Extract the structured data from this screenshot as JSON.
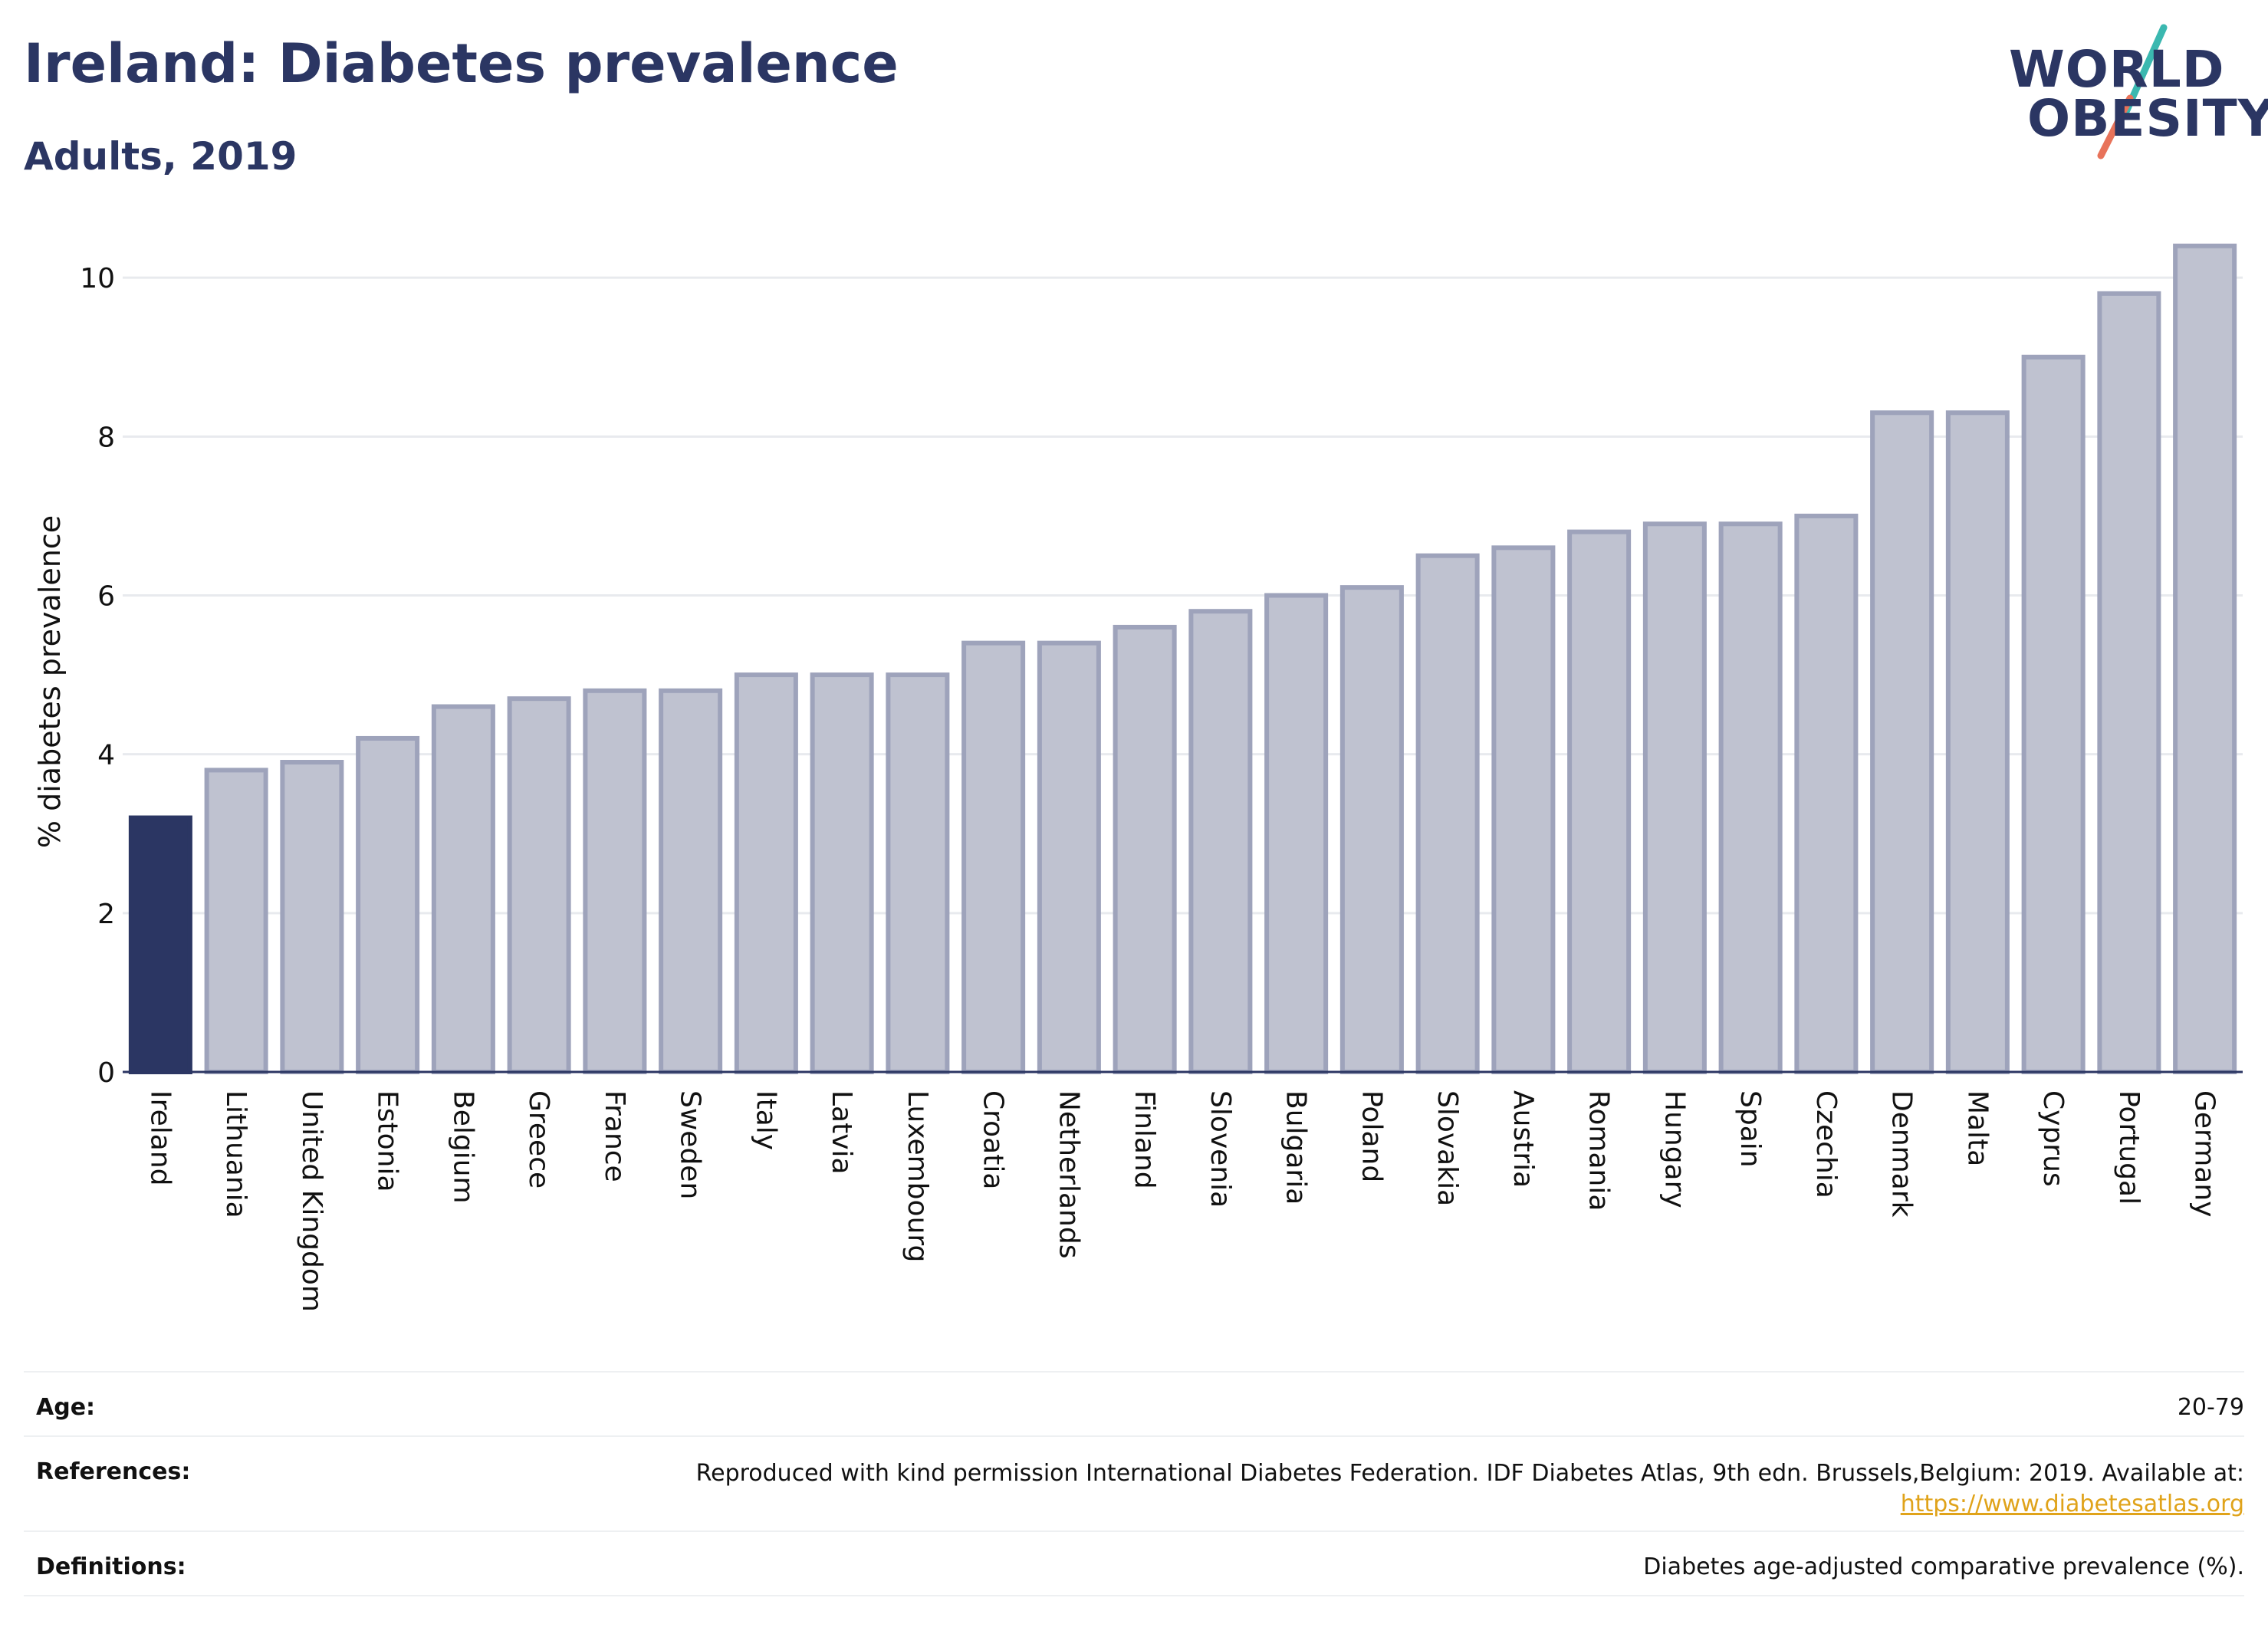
{
  "header": {
    "title": "Ireland: Diabetes prevalence",
    "subtitle": "Adults, 2019"
  },
  "logo": {
    "line1": "WORLD",
    "line2": "OBESITY",
    "accent_colors": [
      "#3bb8b0",
      "#e8735a"
    ]
  },
  "chart_data": {
    "type": "bar",
    "title": "",
    "xlabel": "",
    "ylabel": "% diabetes prevalence",
    "ylim": [
      0,
      10.6
    ],
    "yticks": [
      0,
      2,
      4,
      6,
      8,
      10
    ],
    "grid": true,
    "highlight": "Ireland",
    "highlight_color": "#2b3663",
    "bar_color": "#bfc2d0",
    "bar_border_color": "#9ea3bb",
    "categories": [
      "Ireland",
      "Lithuania",
      "United Kingdom",
      "Estonia",
      "Belgium",
      "Greece",
      "France",
      "Sweden",
      "Italy",
      "Latvia",
      "Luxembourg",
      "Croatia",
      "Netherlands",
      "Finland",
      "Slovenia",
      "Bulgaria",
      "Poland",
      "Slovakia",
      "Austria",
      "Romania",
      "Hungary",
      "Spain",
      "Czechia",
      "Denmark",
      "Malta",
      "Cyprus",
      "Portugal",
      "Germany"
    ],
    "values": [
      3.2,
      3.8,
      3.9,
      4.2,
      4.6,
      4.7,
      4.8,
      4.8,
      5.0,
      5.0,
      5.0,
      5.4,
      5.4,
      5.6,
      5.8,
      6.0,
      6.1,
      6.5,
      6.6,
      6.8,
      6.9,
      6.9,
      7.0,
      8.3,
      8.3,
      9.0,
      9.8,
      10.4
    ]
  },
  "info": {
    "age_label": "Age:",
    "age_value": "20-79",
    "references_label": "References:",
    "references_text": "Reproduced with kind permission International Diabetes Federation. IDF Diabetes Atlas, 9th edn. Brussels,Belgium: 2019. Available at:",
    "references_link": "https://www.diabetesatlas.org",
    "definitions_label": "Definitions:",
    "definitions_value": "Diabetes age-adjusted comparative prevalence (%)."
  }
}
